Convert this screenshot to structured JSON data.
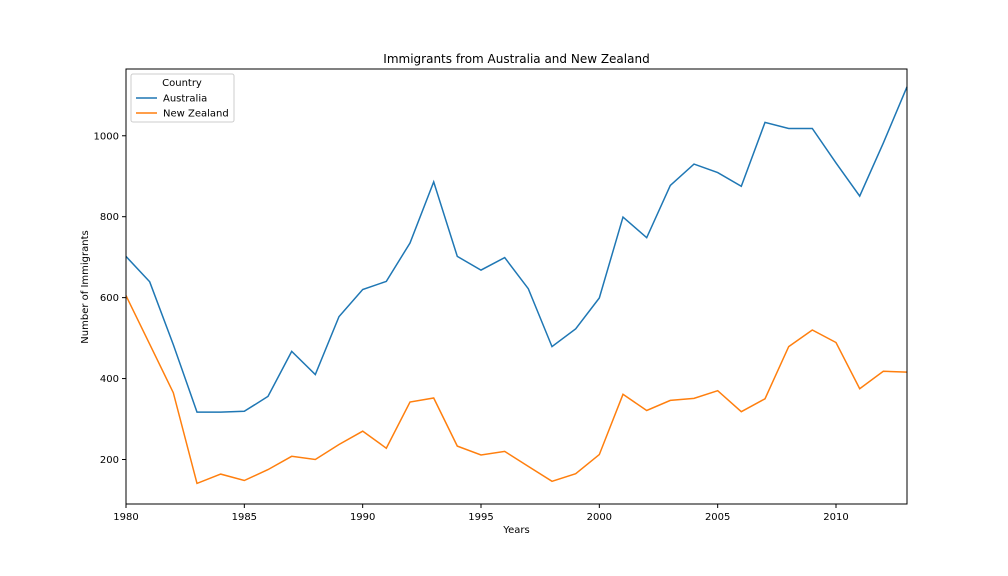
{
  "chart_data": {
    "type": "line",
    "title": "Immigrants from Australia and New Zealand",
    "xlabel": "Years",
    "ylabel": "Number of Immigrants",
    "xlim": [
      1980,
      2013
    ],
    "ylim": [
      90,
      1165
    ],
    "xticks": [
      1980,
      1985,
      1990,
      1995,
      2000,
      2005,
      2010
    ],
    "yticks": [
      200,
      400,
      600,
      800,
      1000
    ],
    "grid": false,
    "legend": {
      "title": "Country",
      "placement": "top-left"
    },
    "x": [
      1980,
      1981,
      1982,
      1983,
      1984,
      1985,
      1986,
      1987,
      1988,
      1989,
      1990,
      1991,
      1992,
      1993,
      1994,
      1995,
      1996,
      1997,
      1998,
      1999,
      2000,
      2001,
      2002,
      2003,
      2004,
      2005,
      2006,
      2007,
      2008,
      2009,
      2010,
      2011,
      2012,
      2013
    ],
    "series": [
      {
        "name": "Australia",
        "color": "#1f77b4",
        "values": [
          702,
          639,
          484,
          317,
          317,
          319,
          356,
          467,
          410,
          553,
          620,
          640,
          735,
          886,
          702,
          668,
          699,
          622,
          479,
          523,
          599,
          799,
          748,
          877,
          930,
          909,
          875,
          1033,
          1018,
          1018,
          933,
          851,
          982,
          1121
        ]
      },
      {
        "name": "New Zealand",
        "color": "#ff7f0e",
        "values": [
          605,
          485,
          365,
          141,
          164,
          148,
          175,
          208,
          200,
          237,
          270,
          228,
          342,
          352,
          233,
          211,
          220,
          183,
          146,
          165,
          212,
          361,
          321,
          346,
          351,
          370,
          318,
          350,
          479,
          520,
          489,
          375,
          418,
          416
        ]
      }
    ]
  }
}
